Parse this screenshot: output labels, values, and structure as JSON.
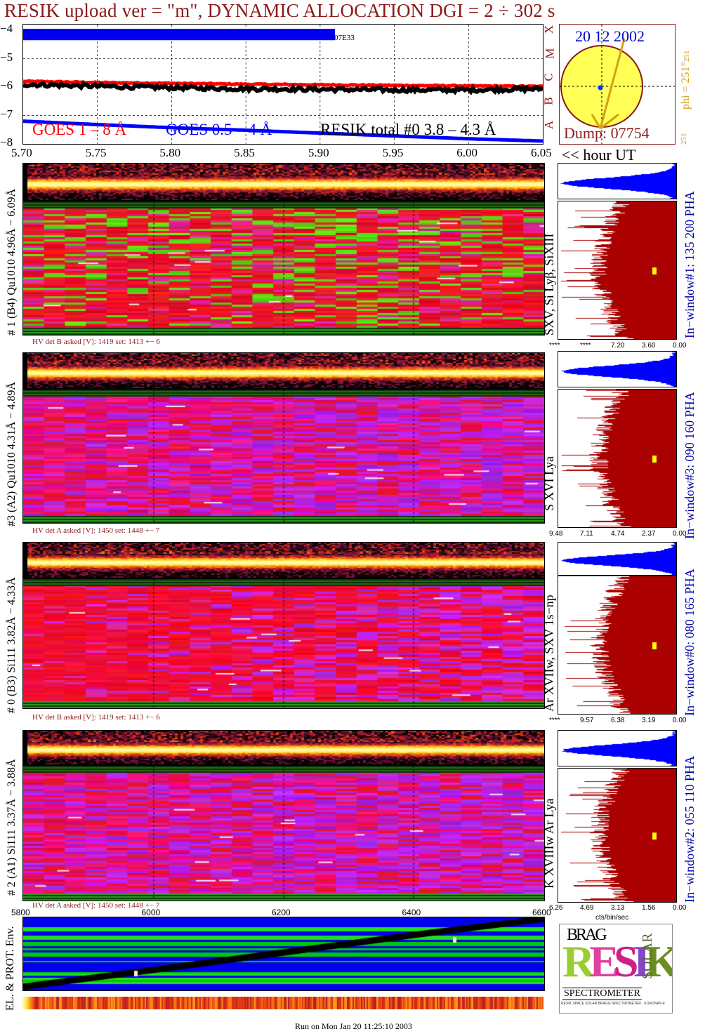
{
  "header": {
    "title": "RESIK upload ver = \"m\", DYNAMIC ALLOCATION  DGI =   2 ÷ 302 s"
  },
  "lightcurve": {
    "y_ticks": [
      "−4",
      "−5",
      "−6",
      "−7",
      "−8"
    ],
    "x_ticks": [
      "5.70",
      "5.75",
      "5.80",
      "5.85",
      "5.90",
      "5.95",
      "6.00",
      "6.05"
    ],
    "x_unit": "<< hour UT",
    "flare_class_labels": [
      "X",
      "M",
      "C",
      "B",
      "A"
    ],
    "annotation": "S07E33",
    "legend": {
      "goes_long": "GOES 1 – 8 Å",
      "goes_short": "GOES 0.5 – 4 Å",
      "resik_total": "RESIK total #0  3.8 – 4.3 Å"
    },
    "colors": {
      "goes_long": "#ff0000",
      "goes_short": "#0000ff",
      "resik": "#000000",
      "label": "#8b1a1a"
    }
  },
  "sun_panel": {
    "date": "20 12 2002",
    "phi_label": "phi = 251°",
    "phi_small": "251",
    "phi_bottom": "251",
    "dump": "Dump: 07754"
  },
  "spectrogram_panels": [
    {
      "id": "p1",
      "left_label": "# 1 (B4) Qu1010 4.96Å − 6.09Å",
      "line_label": "SXV, Si Lyβ, SiXIII",
      "window_label": "In−window#1:  135 200 PHA",
      "hv_text": "HV det B asked [V]:   1419 set:   1413  +−    6",
      "scale_ticks": [
        "****",
        "****",
        "7.20",
        "3.60",
        "0.00"
      ]
    },
    {
      "id": "p3",
      "left_label": "#3 (A2) Qu1010  4.31Å − 4.89Å",
      "line_label": "S XVI Lya",
      "window_label": "In−window#3:  090 160 PHA",
      "hv_text": "HV det A asked [V]:   1450 set:   1448  +−    7",
      "scale_ticks": [
        "9.48",
        "7.11",
        "4.74",
        "2.37",
        "0.00"
      ]
    },
    {
      "id": "p0",
      "left_label": "# 0 (B3) Si111  3.82Å − 4.33Å",
      "line_label": "Ar XVIIw,  SXV 1s−np",
      "window_label": "In−window#0:  080 165 PHA",
      "hv_text": "HV det B asked [V]:   1419 set:   1413  +−    6",
      "scale_ticks": [
        "****",
        "9.57",
        "6.38",
        "3.19",
        "0.00"
      ]
    },
    {
      "id": "p2",
      "left_label": "# 2 (A1) Si111  3.37Å − 3.88Å",
      "line_label": "K XVIIIw  Ar Lya",
      "window_label": "In−window#2:  055 110 PHA",
      "hv_text": "HV det A asked [V]:   1450 set:   1448  +−    7",
      "scale_ticks": [
        "6.26",
        "4.69",
        "3.13",
        "1.56",
        "0.00"
      ],
      "scale_unit": "cts/bin/sec"
    }
  ],
  "env_panel": {
    "label": "EL. & PROT. Env.",
    "x_ticks": [
      "5800",
      "6000",
      "6200",
      "6400",
      "6600"
    ]
  },
  "logo": {
    "letters": "RESIK",
    "top": "BRAG",
    "side": "SOLAR",
    "bottom": "SPECTROMETER",
    "fine_print": "RESIK SPACE SOLAR BRAGG SPECTROMETER · KORONAS-F"
  },
  "footer": {
    "run_text": "Run on Mon Jan 20 11:25:10 2003"
  },
  "chart_data": [
    {
      "type": "line",
      "title": "RESIK upload ver = \"m\", DYNAMIC ALLOCATION  DGI =   2 ÷ 302 s",
      "x": [
        5.7,
        5.75,
        5.8,
        5.85,
        5.9,
        5.95,
        6.0,
        6.05
      ],
      "xlim": [
        5.7,
        6.05
      ],
      "ylim": [
        -8,
        -3.8
      ],
      "series": [
        {
          "name": "GOES 1 – 8 Å",
          "values": [
            -5.8,
            -5.84,
            -5.87,
            -5.9,
            -5.92,
            -5.94,
            -5.96,
            -5.98
          ]
        },
        {
          "name": "GOES 0.5 – 4 Å",
          "values": [
            -7.2,
            -7.32,
            -7.43,
            -7.52,
            -7.62,
            -7.72,
            -7.82,
            -7.9
          ]
        },
        {
          "name": "RESIK total #0  3.8 – 4.3 Å",
          "values": [
            -5.9,
            -5.97,
            -6.02,
            -6.06,
            -6.08,
            -6.1,
            -6.1,
            -6.06
          ]
        }
      ],
      "grid": true,
      "legend": "bottom"
    },
    {
      "type": "line",
      "x": [
        5800,
        6000,
        6200,
        6400,
        6600
      ],
      "xlim": [
        5800,
        6600
      ],
      "series": [
        {
          "values": [
            0.05,
            0.28,
            0.52,
            0.76,
            0.98
          ]
        }
      ]
    }
  ]
}
